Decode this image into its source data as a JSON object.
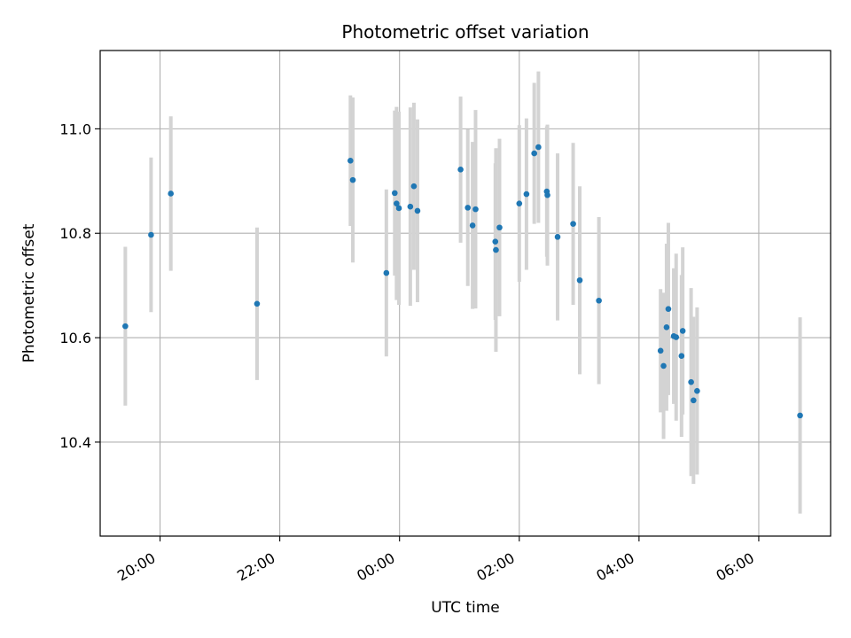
{
  "chart_data": {
    "type": "scatter",
    "title": "Photometric offset variation",
    "xlabel": "UTC time",
    "ylabel": "Photometric offset",
    "x_unit": "hours",
    "xlim": [
      -5.0,
      7.2
    ],
    "ylim": [
      10.22,
      11.15
    ],
    "grid": true,
    "legend": "none",
    "x_ticks": [
      {
        "value": -4,
        "label": "20:00"
      },
      {
        "value": -2,
        "label": "22:00"
      },
      {
        "value": 0,
        "label": "00:00"
      },
      {
        "value": 2,
        "label": "02:00"
      },
      {
        "value": 4,
        "label": "04:00"
      },
      {
        "value": 6,
        "label": "06:00"
      }
    ],
    "y_ticks": [
      {
        "value": 10.4,
        "label": "10.4"
      },
      {
        "value": 10.6,
        "label": "10.6"
      },
      {
        "value": 10.8,
        "label": "10.8"
      },
      {
        "value": 11.0,
        "label": "11.0"
      }
    ],
    "colors": {
      "point": "#1f77b4",
      "errorbar": "#d3d3d3",
      "grid": "#b0b0b0"
    },
    "points": [
      {
        "x": -4.58,
        "y": 10.622,
        "err": 0.152
      },
      {
        "x": -4.15,
        "y": 10.797,
        "err": 0.148
      },
      {
        "x": -3.82,
        "y": 10.876,
        "err": 0.148
      },
      {
        "x": -2.38,
        "y": 10.665,
        "err": 0.146
      },
      {
        "x": -0.82,
        "y": 10.939,
        "err": 0.125
      },
      {
        "x": -0.78,
        "y": 10.902,
        "err": 0.158
      },
      {
        "x": -0.22,
        "y": 10.724,
        "err": 0.16
      },
      {
        "x": -0.08,
        "y": 10.877,
        "err": 0.158
      },
      {
        "x": -0.05,
        "y": 10.857,
        "err": 0.185
      },
      {
        "x": -0.01,
        "y": 10.848,
        "err": 0.185
      },
      {
        "x": 0.18,
        "y": 10.851,
        "err": 0.19
      },
      {
        "x": 0.24,
        "y": 10.89,
        "err": 0.16
      },
      {
        "x": 0.3,
        "y": 10.843,
        "err": 0.175
      },
      {
        "x": 1.02,
        "y": 10.922,
        "err": 0.14
      },
      {
        "x": 1.14,
        "y": 10.849,
        "err": 0.15
      },
      {
        "x": 1.22,
        "y": 10.815,
        "err": 0.16
      },
      {
        "x": 1.27,
        "y": 10.846,
        "err": 0.19
      },
      {
        "x": 1.6,
        "y": 10.784,
        "err": 0.15
      },
      {
        "x": 1.61,
        "y": 10.768,
        "err": 0.195
      },
      {
        "x": 1.67,
        "y": 10.811,
        "err": 0.17
      },
      {
        "x": 2.0,
        "y": 10.857,
        "err": 0.15
      },
      {
        "x": 2.12,
        "y": 10.875,
        "err": 0.145
      },
      {
        "x": 2.25,
        "y": 10.953,
        "err": 0.135
      },
      {
        "x": 2.32,
        "y": 10.965,
        "err": 0.145
      },
      {
        "x": 2.46,
        "y": 10.88,
        "err": 0.125
      },
      {
        "x": 2.47,
        "y": 10.873,
        "err": 0.135
      },
      {
        "x": 2.64,
        "y": 10.793,
        "err": 0.16
      },
      {
        "x": 2.9,
        "y": 10.818,
        "err": 0.155
      },
      {
        "x": 3.01,
        "y": 10.71,
        "err": 0.18
      },
      {
        "x": 3.33,
        "y": 10.671,
        "err": 0.16
      },
      {
        "x": 4.36,
        "y": 10.575,
        "err": 0.118
      },
      {
        "x": 4.41,
        "y": 10.546,
        "err": 0.14
      },
      {
        "x": 4.46,
        "y": 10.62,
        "err": 0.16
      },
      {
        "x": 4.49,
        "y": 10.655,
        "err": 0.165
      },
      {
        "x": 4.58,
        "y": 10.603,
        "err": 0.13
      },
      {
        "x": 4.62,
        "y": 10.601,
        "err": 0.16
      },
      {
        "x": 4.71,
        "y": 10.565,
        "err": 0.155
      },
      {
        "x": 4.73,
        "y": 10.613,
        "err": 0.16
      },
      {
        "x": 4.87,
        "y": 10.515,
        "err": 0.18
      },
      {
        "x": 4.91,
        "y": 10.48,
        "err": 0.16
      },
      {
        "x": 4.97,
        "y": 10.498,
        "err": 0.16
      },
      {
        "x": 6.69,
        "y": 10.451,
        "err": 0.188
      }
    ]
  }
}
